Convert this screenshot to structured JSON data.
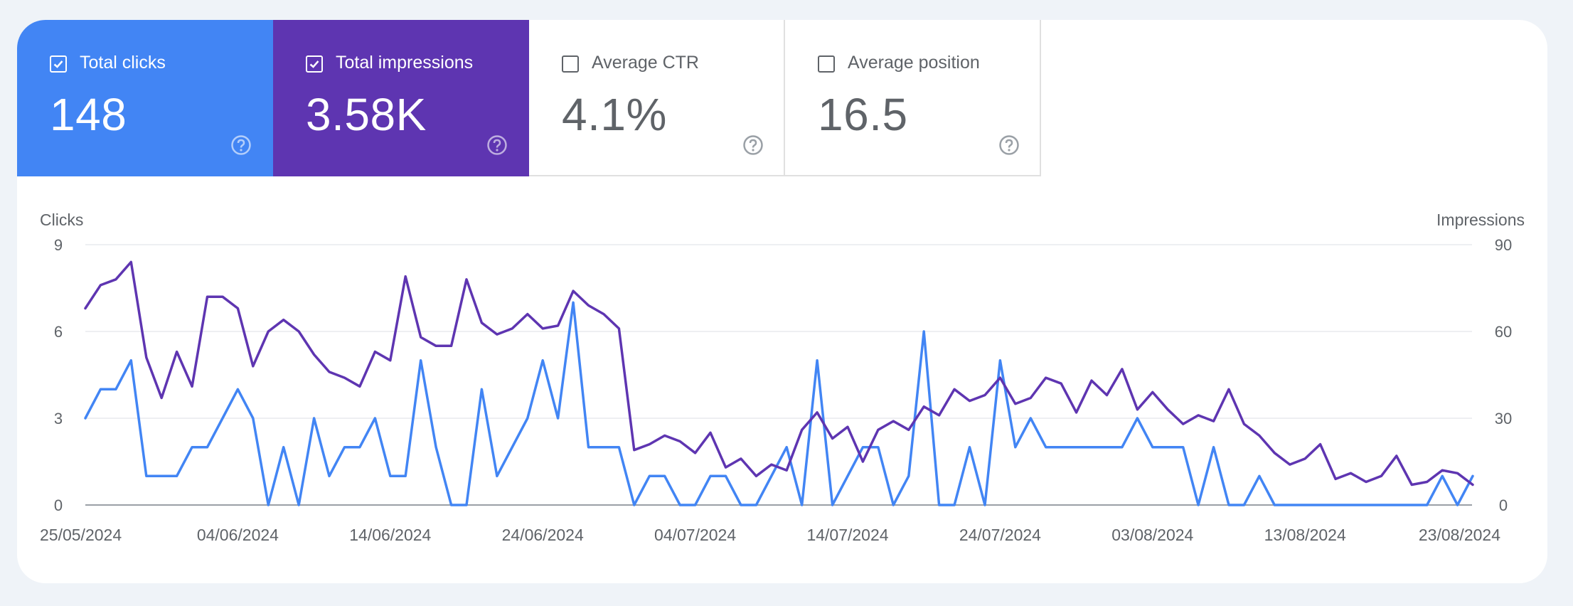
{
  "colors": {
    "clicks": "#4285f4",
    "impressions": "#5e35b1",
    "grid": "#e8eaed",
    "axis": "#9aa0a6",
    "text": "#5f6368"
  },
  "tiles": [
    {
      "id": "clicks",
      "label": "Total clicks",
      "value": "148",
      "checked": true,
      "icon": "help-icon"
    },
    {
      "id": "impressions",
      "label": "Total impressions",
      "value": "3.58K",
      "checked": true,
      "icon": "help-icon"
    },
    {
      "id": "ctr",
      "label": "Average CTR",
      "value": "4.1%",
      "checked": false,
      "icon": "help-icon"
    },
    {
      "id": "position",
      "label": "Average position",
      "value": "16.5",
      "checked": false,
      "icon": "help-icon"
    }
  ],
  "chart_data": {
    "type": "line",
    "ylabel_left": "Clicks",
    "ylabel_right": "Impressions",
    "ylim_left": [
      0,
      9
    ],
    "ylim_right": [
      0,
      90
    ],
    "yticks_left": [
      "0",
      "3",
      "6",
      "9"
    ],
    "yticks_right": [
      "0",
      "30",
      "60",
      "90"
    ],
    "x_start": "25/05/2024",
    "x_end": "23/08/2024",
    "xtick_labels": [
      "25/05/2024",
      "04/06/2024",
      "14/06/2024",
      "24/06/2024",
      "04/07/2024",
      "14/07/2024",
      "24/07/2024",
      "03/08/2024",
      "13/08/2024",
      "23/08/2024"
    ],
    "grid": true,
    "series": [
      {
        "name": "Clicks",
        "axis": "left",
        "values": [
          3,
          4,
          4,
          5,
          1,
          1,
          1,
          2,
          2,
          3,
          4,
          3,
          0,
          2,
          0,
          3,
          1,
          2,
          2,
          3,
          1,
          1,
          5,
          2,
          0,
          0,
          4,
          1,
          2,
          3,
          5,
          3,
          7,
          2,
          2,
          2,
          0,
          1,
          1,
          0,
          0,
          1,
          1,
          0,
          0,
          1,
          2,
          0,
          5,
          0,
          1,
          2,
          2,
          0,
          1,
          6,
          0,
          0,
          2,
          0,
          5,
          2,
          3,
          2,
          2,
          2,
          2,
          2,
          2,
          3,
          2,
          2,
          2,
          0,
          2,
          0,
          0,
          1,
          0,
          0,
          0,
          0,
          0,
          0,
          0,
          0,
          0,
          0,
          0,
          1,
          0,
          1
        ]
      },
      {
        "name": "Impressions",
        "axis": "right",
        "values": [
          68,
          76,
          78,
          84,
          51,
          37,
          53,
          41,
          72,
          72,
          68,
          48,
          60,
          64,
          60,
          52,
          46,
          44,
          41,
          53,
          50,
          79,
          58,
          55,
          55,
          78,
          63,
          59,
          61,
          66,
          61,
          62,
          74,
          69,
          66,
          61,
          19,
          21,
          24,
          22,
          18,
          25,
          13,
          16,
          10,
          14,
          12,
          26,
          32,
          23,
          27,
          15,
          26,
          29,
          26,
          34,
          31,
          40,
          36,
          38,
          44,
          35,
          37,
          44,
          42,
          32,
          43,
          38,
          47,
          33,
          39,
          33,
          28,
          31,
          29,
          40,
          28,
          24,
          18,
          14,
          16,
          21,
          9,
          11,
          8,
          10,
          17,
          7,
          8,
          12,
          11,
          7
        ]
      }
    ]
  }
}
